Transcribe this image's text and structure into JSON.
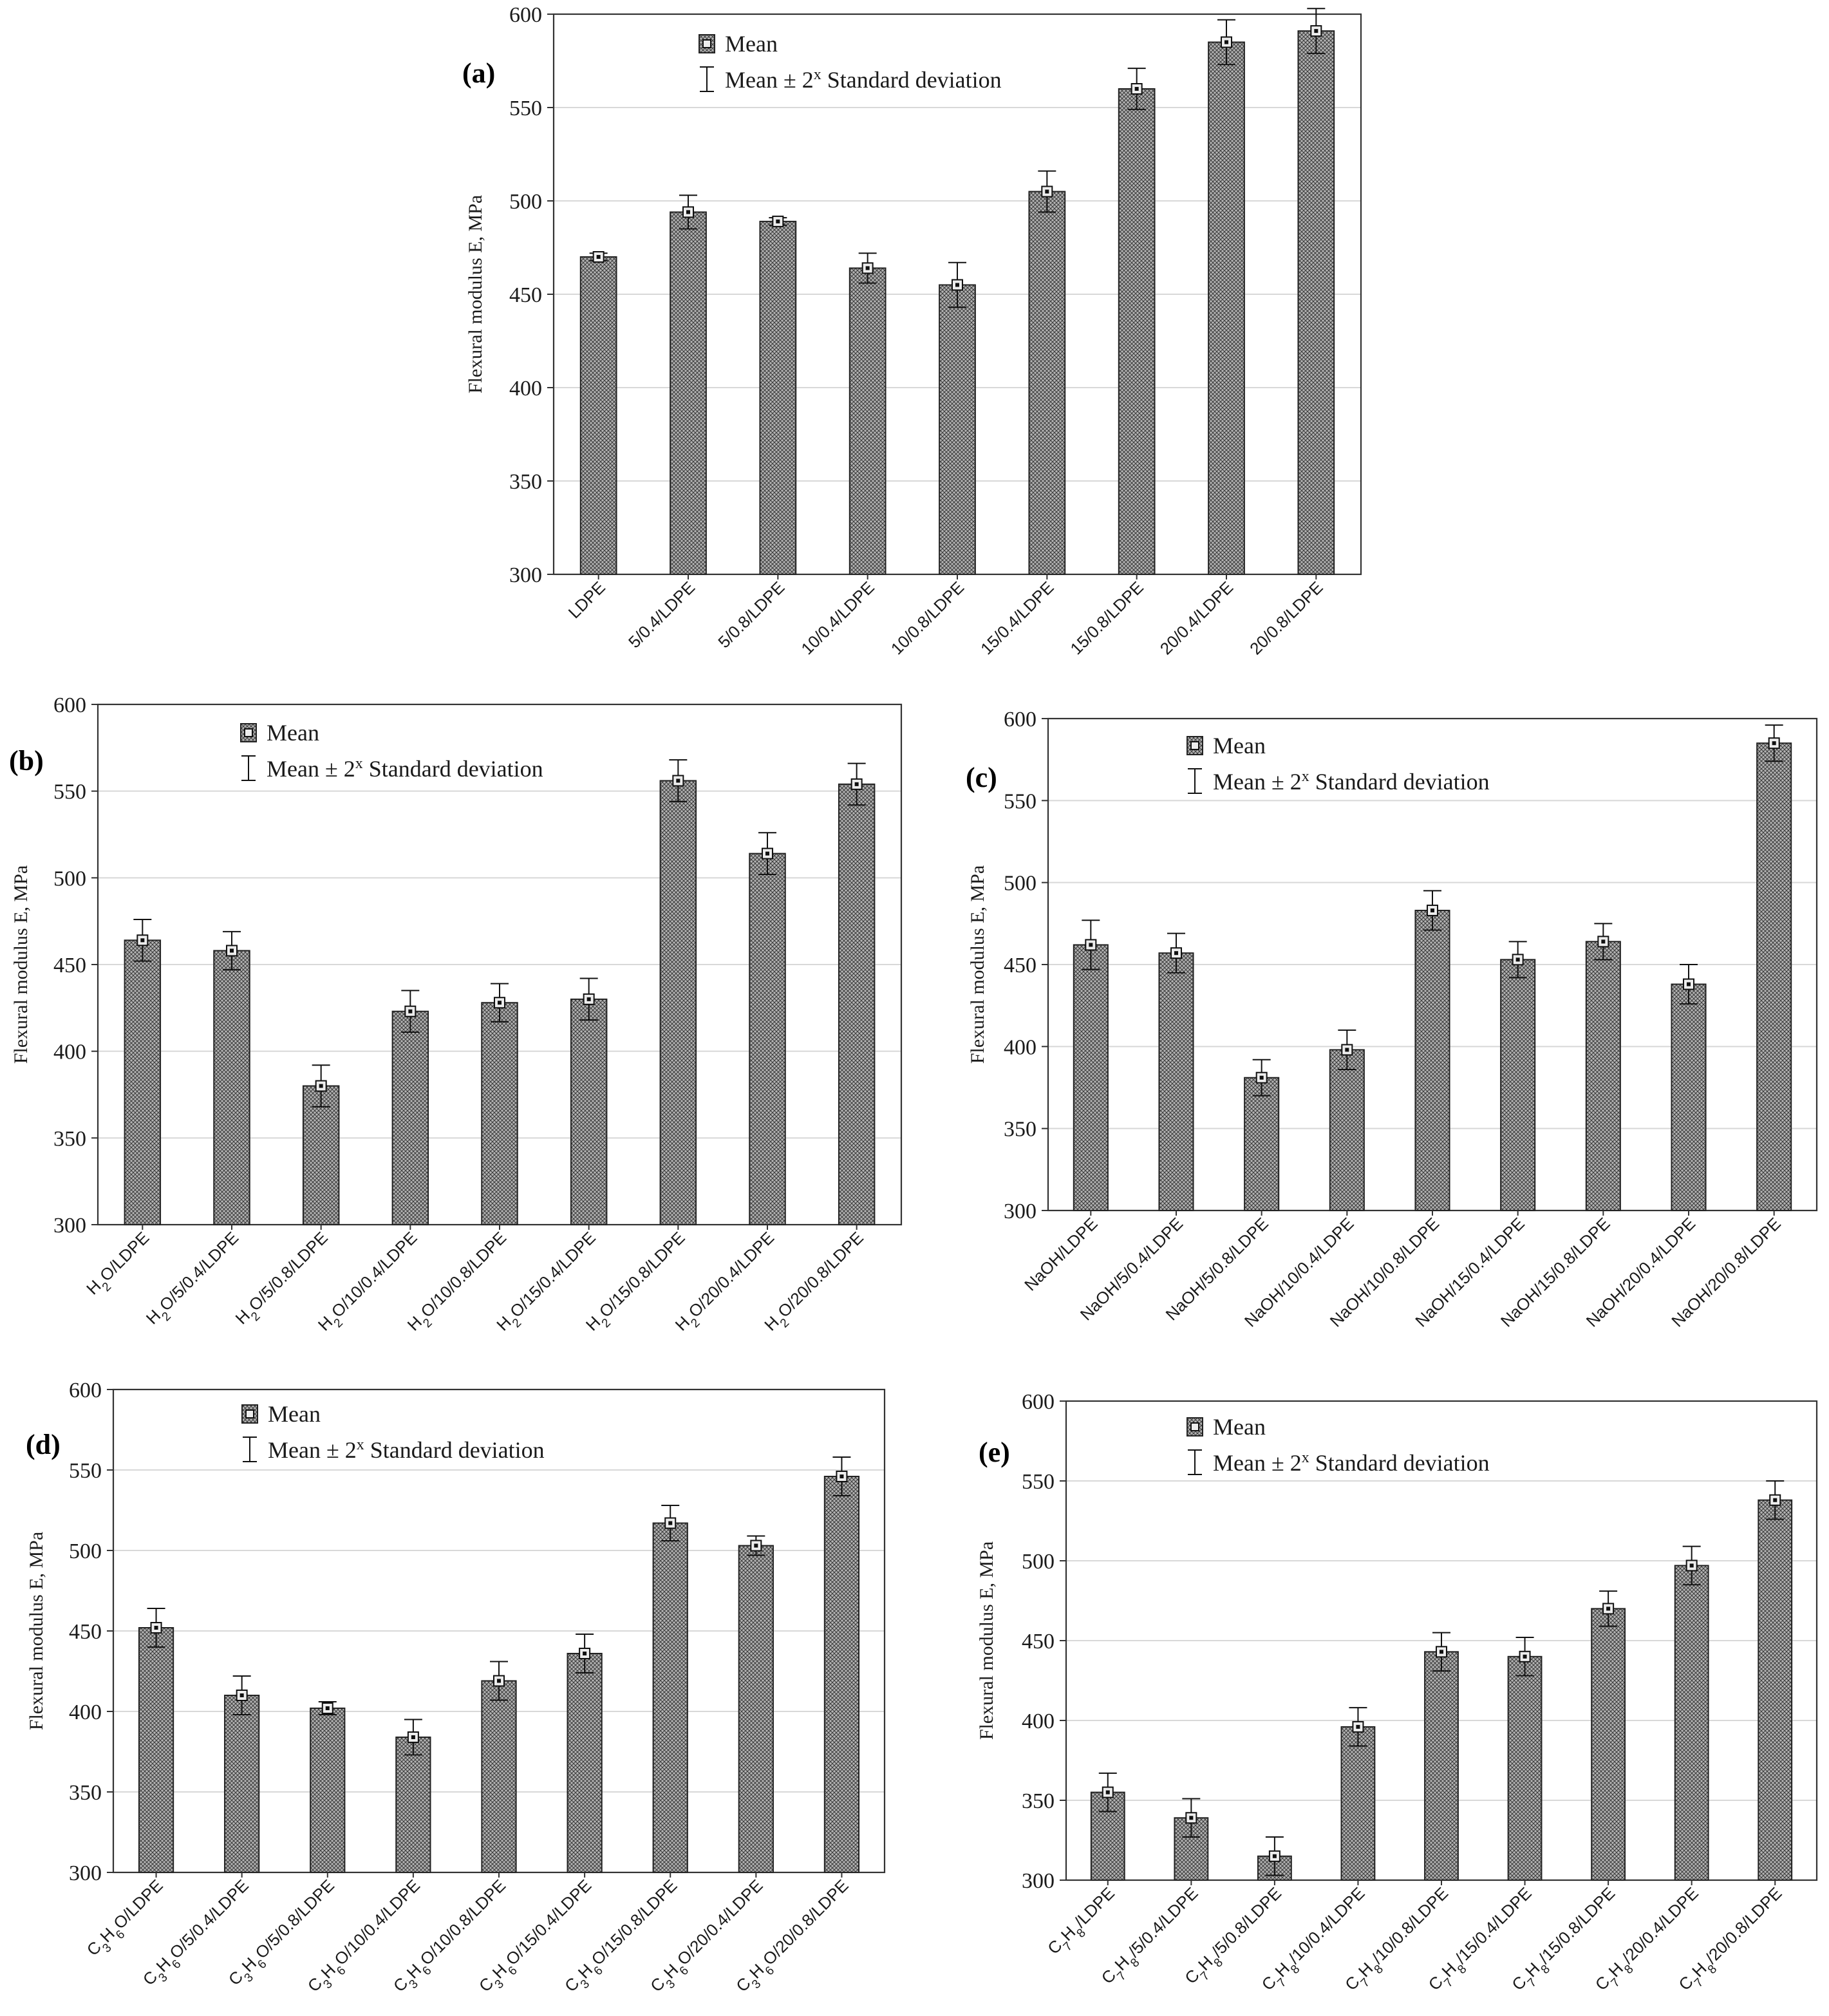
{
  "figure": {
    "ylabel": "Flexural modulus E, MPa",
    "legend_mean": "Mean",
    "legend_sd": "Mean ± 2",
    "legend_sd_sup": "x",
    "legend_sd_tail": " Standard deviation"
  },
  "chart_data": [
    {
      "id": "a",
      "panel_label": "(a)",
      "type": "bar",
      "ylabel": "Flexural modulus E, MPa",
      "ylim": [
        300,
        600
      ],
      "yticks": [
        300,
        350,
        400,
        450,
        500,
        550,
        600
      ],
      "categories": [
        "LDPE",
        "5/0.4/LDPE",
        "5/0.8/LDPE",
        "10/0.4/LDPE",
        "10/0.8/LDPE",
        "15/0.4/LDPE",
        "15/0.8/LDPE",
        "20/0.4/LDPE",
        "20/0.8/LDPE"
      ],
      "values": [
        470,
        494,
        489,
        464,
        455,
        505,
        560,
        585,
        591
      ],
      "error": [
        2,
        9,
        2,
        8,
        12,
        11,
        11,
        12,
        12
      ],
      "legend": [
        "Mean",
        "Mean ± 2x Standard deviation"
      ]
    },
    {
      "id": "b",
      "panel_label": "(b)",
      "type": "bar",
      "ylabel": "Flexural modulus E, MPa",
      "ylim": [
        300,
        600
      ],
      "yticks": [
        300,
        350,
        400,
        450,
        500,
        550,
        600
      ],
      "categories": [
        "H2O/LDPE",
        "H2O/5/0.4/LDPE",
        "H2O/5/0.8/LDPE",
        "H2O/10/0.4/LDPE",
        "H2O/10/0.8/LDPE",
        "H2O/15/0.4/LDPE",
        "H2O/15/0.8/LDPE",
        "H2O/20/0.4/LDPE",
        "H2O/20/0.8/LDPE"
      ],
      "values": [
        464,
        458,
        380,
        423,
        428,
        430,
        556,
        514,
        554
      ],
      "error": [
        12,
        11,
        12,
        12,
        11,
        12,
        12,
        12,
        12
      ],
      "legend": [
        "Mean",
        "Mean ± 2x Standard deviation"
      ]
    },
    {
      "id": "c",
      "panel_label": "(c)",
      "type": "bar",
      "ylabel": "Flexural modulus E, MPa",
      "ylim": [
        300,
        600
      ],
      "yticks": [
        300,
        350,
        400,
        450,
        500,
        550,
        600
      ],
      "categories": [
        "NaOH/LDPE",
        "NaOH/5/0.4/LDPE",
        "NaOH/5/0.8/LDPE",
        "NaOH/10/0.4/LDPE",
        "NaOH/10/0.8/LDPE",
        "NaOH/15/0.4/LDPE",
        "NaOH/15/0.8/LDPE",
        "NaOH/20/0.4/LDPE",
        "NaOH/20/0.8/LDPE"
      ],
      "values": [
        462,
        457,
        381,
        398,
        483,
        453,
        464,
        438,
        585
      ],
      "error": [
        15,
        12,
        11,
        12,
        12,
        11,
        11,
        12,
        11
      ],
      "legend": [
        "Mean",
        "Mean ± 2x Standard deviation"
      ]
    },
    {
      "id": "d",
      "panel_label": "(d)",
      "type": "bar",
      "ylabel": "Flexural modulus E, MPa",
      "ylim": [
        300,
        600
      ],
      "yticks": [
        300,
        350,
        400,
        450,
        500,
        550,
        600
      ],
      "categories": [
        "C3H6O/LDPE",
        "C3H6O/5/0.4/LDPE",
        "C3H6O/5/0.8/LDPE",
        "C3H6O/10/0.4/LDPE",
        "C3H6O/10/0.8/LDPE",
        "C3H6O/15/0.4/LDPE",
        "C3H6O/15/0.8/LDPE",
        "C3H6O/20/0.4/LDPE",
        "C3H6O/20/0.8/LDPE"
      ],
      "values": [
        452,
        410,
        402,
        384,
        419,
        436,
        517,
        503,
        546
      ],
      "error": [
        12,
        12,
        4,
        11,
        12,
        12,
        11,
        6,
        12
      ],
      "legend": [
        "Mean",
        "Mean ± 2x Standard deviation"
      ]
    },
    {
      "id": "e",
      "panel_label": "(e)",
      "type": "bar",
      "ylabel": "Flexural modulus E, MPa",
      "ylim": [
        300,
        600
      ],
      "yticks": [
        300,
        350,
        400,
        450,
        500,
        550,
        600
      ],
      "categories": [
        "C7H8/LDPE",
        "C7H8/5/0.4/LDPE",
        "C7H8/5/0.8/LDPE",
        "C7H8/10/0.4/LDPE",
        "C7H8/10/0.8/LDPE",
        "C7H8/15/0.4/LDPE",
        "C7H8/15/0.8/LDPE",
        "C7H8/20/0.4/LDPE",
        "C7H8/20/0.8/LDPE"
      ],
      "values": [
        355,
        339,
        315,
        396,
        443,
        440,
        470,
        497,
        538
      ],
      "error": [
        12,
        12,
        12,
        12,
        12,
        12,
        11,
        12,
        12
      ],
      "legend": [
        "Mean",
        "Mean ± 2x Standard deviation"
      ]
    }
  ]
}
